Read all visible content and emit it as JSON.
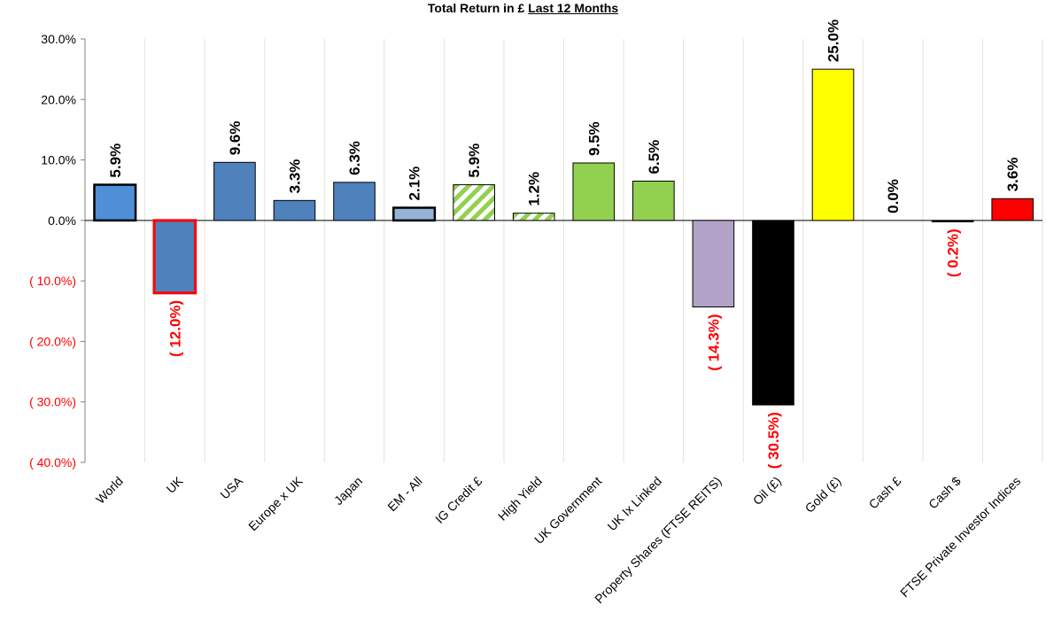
{
  "chart_data": {
    "type": "bar",
    "title_part1": "Total Return in £ ",
    "title_part2": "Last 12 Months",
    "categories": [
      "World",
      "UK",
      "USA",
      "Europe x UK",
      "Japan",
      "EM - All",
      "IG Credit £",
      "High Yield",
      "UK Government",
      "UK Ix Linked",
      "Property Shares (FTSE REITS)",
      "Oil (£)",
      "Gold (£)",
      "Cash £",
      "Cash $",
      "FTSE Private Investor Indices"
    ],
    "values": [
      5.9,
      -12.0,
      9.6,
      3.3,
      6.3,
      2.1,
      5.9,
      1.2,
      9.5,
      6.5,
      -14.3,
      -30.5,
      25.0,
      0.0,
      -0.2,
      3.6
    ],
    "value_labels": [
      "5.9%",
      "( 12.0%)",
      "9.6%",
      "3.3%",
      "6.3%",
      "2.1%",
      "5.9%",
      "1.2%",
      "9.5%",
      "6.5%",
      "( 14.3%)",
      "( 30.5%)",
      "25.0%",
      "0.0%",
      "( 0.2%)",
      "3.6%"
    ],
    "bar_colors": [
      "#4f8fd8",
      "#4f81bd",
      "#4f81bd",
      "#4f81bd",
      "#4f81bd",
      "#95b3d7",
      "hatch-green",
      "hatch-green",
      "#92d050",
      "#92d050",
      "#b2a2c7",
      "#000000",
      "#ffff00",
      "#ffffff",
      "#000000",
      "#ff0000"
    ],
    "bar_borders": [
      "#000000",
      "#ff0000",
      "#000000",
      "#000000",
      "#000000",
      "#000000",
      "#000000",
      "#000000",
      "#000000",
      "#000000",
      "#000000",
      "#000000",
      "#000000",
      "#000000",
      "#000000",
      "#000000"
    ],
    "bar_border_widths": [
      2.5,
      3,
      1,
      1,
      1,
      2.5,
      1,
      1,
      1,
      1,
      1,
      1,
      1,
      1,
      1,
      1
    ],
    "ylim": [
      -40,
      30
    ],
    "yticks": [
      30,
      20,
      10,
      0,
      -10,
      -20,
      -30,
      -40
    ],
    "ytick_labels": [
      "30.0%",
      "20.0%",
      "10.0%",
      "0.0%",
      "( 10.0%)",
      "( 20.0%)",
      "( 30.0%)",
      "( 40.0%)"
    ],
    "positive_color": "#000000",
    "negative_color": "#ff0000",
    "grid": "vertical",
    "legend": "none"
  }
}
